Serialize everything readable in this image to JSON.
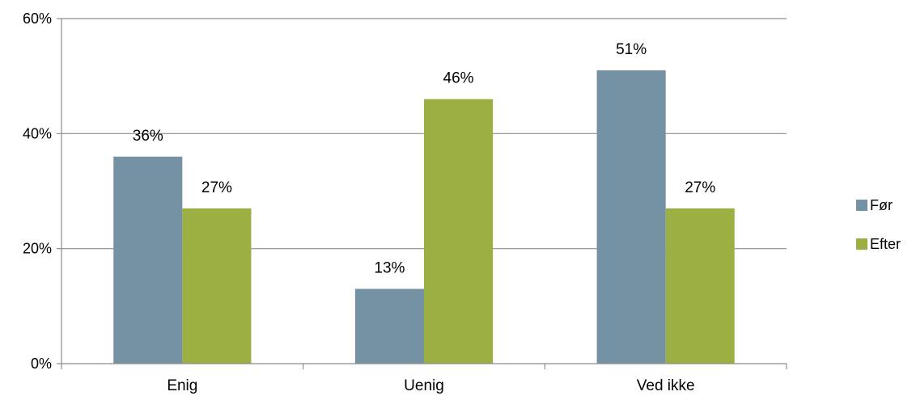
{
  "chart_data": {
    "type": "bar",
    "title": "",
    "xlabel": "",
    "ylabel": "",
    "categories": [
      "Enig",
      "Uenig",
      "Ved ikke"
    ],
    "series": [
      {
        "name": "Før",
        "values": [
          36,
          13,
          51
        ],
        "labels": [
          "36%",
          "13%",
          "51%"
        ],
        "color": "#7591a4"
      },
      {
        "name": "Efter",
        "values": [
          27,
          46,
          27
        ],
        "labels": [
          "27%",
          "46%",
          "27%"
        ],
        "color": "#9caf43"
      }
    ],
    "ylim": [
      0,
      60
    ],
    "yticks": [
      0,
      20,
      40,
      60
    ],
    "ytick_labels": [
      "0%",
      "20%",
      "40%",
      "60%"
    ],
    "grid": true,
    "legend": "right"
  },
  "colors": {
    "gridline": "#8c8c8c",
    "axis": "#8c8c8c"
  }
}
